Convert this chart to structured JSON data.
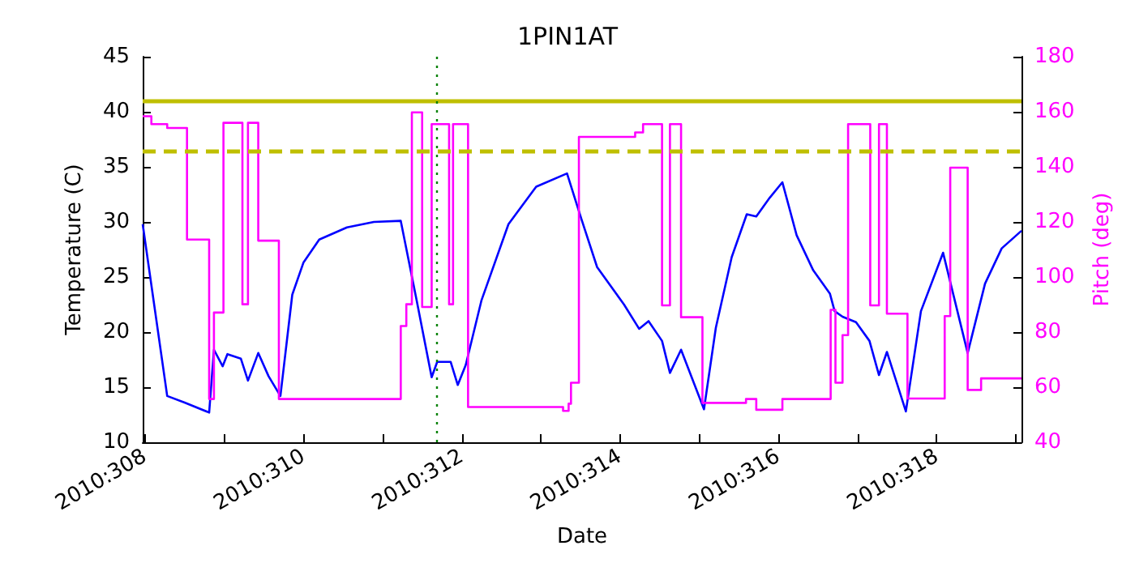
{
  "chart_data": {
    "type": "line",
    "title": "1PIN1AT",
    "xlabel": "Date",
    "ylabel": "Temperature (C)",
    "y2label": "Pitch (deg)",
    "xlim": [
      "2010-11-03T23:17",
      "2010-11-15T01:41"
    ],
    "xticks": [
      {
        "value": "2010-11-04",
        "label": "2010:308"
      },
      {
        "value": "2010-11-05",
        "label": null
      },
      {
        "value": "2010-11-06",
        "label": "2010:310"
      },
      {
        "value": "2010-11-07",
        "label": null
      },
      {
        "value": "2010-11-08",
        "label": "2010:312"
      },
      {
        "value": "2010-11-09",
        "label": null
      },
      {
        "value": "2010-11-10",
        "label": "2010:314"
      },
      {
        "value": "2010-11-11",
        "label": null
      },
      {
        "value": "2010-11-12",
        "label": "2010:316"
      },
      {
        "value": "2010-11-13",
        "label": null
      },
      {
        "value": "2010-11-14",
        "label": "2010:318"
      },
      {
        "value": "2010-11-15",
        "label": null
      }
    ],
    "ylim": [
      10,
      45
    ],
    "yticks": [
      10,
      15,
      20,
      25,
      30,
      35,
      40,
      45
    ],
    "y2lim": [
      40,
      180
    ],
    "y2ticks": [
      40,
      60,
      80,
      100,
      120,
      140,
      160,
      180
    ],
    "grid": false,
    "series": [
      {
        "axis": "y",
        "color": "#0000ff",
        "x": [
          "2010-11-03T23:17",
          "2010-11-04T06:43",
          "2010-11-04T12:00",
          "2010-11-04T19:26",
          "2010-11-04T20:53",
          "2010-11-04T23:31",
          "2010-11-05T00:58",
          "2010-11-05T05:02",
          "2010-11-05T07:12",
          "2010-11-05T10:19",
          "2010-11-05T13:26",
          "2010-11-05T17:02",
          "2010-11-05T20:38",
          "2010-11-06T00:00",
          "2010-11-06T04:48",
          "2010-11-06T13:12",
          "2010-11-06T21:22",
          "2010-11-07T05:31",
          "2010-11-07T10:19",
          "2010-11-07T14:53",
          "2010-11-07T16:34",
          "2010-11-07T20:38",
          "2010-11-07T22:48",
          "2010-11-08T01:12",
          "2010-11-08T06:00",
          "2010-11-08T14:10",
          "2010-11-08T22:34",
          "2010-11-09T07:55",
          "2010-11-09T12:14",
          "2010-11-09T17:02",
          "2010-11-10T01:12",
          "2010-11-10T05:46",
          "2010-11-10T08:38",
          "2010-11-10T12:43",
          "2010-11-10T15:07",
          "2010-11-10T18:29",
          "2010-11-11T01:26",
          "2010-11-11T05:02",
          "2010-11-11T09:50",
          "2010-11-11T14:24",
          "2010-11-11T17:17",
          "2010-11-11T21:22",
          "2010-11-12T01:12",
          "2010-11-12T05:31",
          "2010-11-12T10:34",
          "2010-11-12T15:36",
          "2010-11-12T17:02",
          "2010-11-12T19:26",
          "2010-11-12T23:31",
          "2010-11-13T03:36",
          "2010-11-13T06:29",
          "2010-11-13T08:53",
          "2010-11-13T14:38",
          "2010-11-13T19:12",
          "2010-11-14T01:55",
          "2010-11-14T09:22",
          "2010-11-14T14:38",
          "2010-11-14T19:41",
          "2010-11-15T01:41"
        ],
        "values": [
          29.8,
          14.2,
          13.6,
          12.7,
          18.4,
          16.9,
          18.0,
          17.6,
          15.6,
          18.1,
          16.0,
          14.2,
          23.4,
          26.3,
          28.4,
          29.5,
          30.0,
          30.1,
          22.9,
          15.9,
          17.3,
          17.3,
          15.2,
          17.0,
          22.9,
          29.8,
          33.2,
          34.4,
          30.3,
          25.9,
          22.5,
          20.3,
          21.0,
          19.2,
          16.3,
          18.4,
          13.0,
          20.4,
          26.8,
          30.7,
          30.5,
          32.2,
          33.6,
          28.8,
          25.6,
          23.5,
          21.9,
          21.4,
          20.9,
          19.2,
          16.1,
          18.2,
          12.8,
          21.9,
          27.2,
          18.1,
          24.4,
          27.6,
          29.2
        ]
      },
      {
        "type": "step",
        "axis": "y2",
        "color": "#ff00ff",
        "x": [
          "2010-11-03T23:17",
          "2010-11-04T01:55",
          "2010-11-04T06:43",
          "2010-11-04T12:43",
          "2010-11-04T19:26",
          "2010-11-04T20:53",
          "2010-11-04T23:46",
          "2010-11-05T05:31",
          "2010-11-05T07:12",
          "2010-11-05T10:19",
          "2010-11-05T16:34",
          "2010-11-07T05:31",
          "2010-11-07T07:12",
          "2010-11-07T08:53",
          "2010-11-07T12:00",
          "2010-11-07T14:53",
          "2010-11-07T20:10",
          "2010-11-07T21:22",
          "2010-11-08T01:55",
          "2010-11-09T06:43",
          "2010-11-09T08:24",
          "2010-11-09T09:07",
          "2010-11-09T11:31",
          "2010-11-10T04:34",
          "2010-11-10T06:58",
          "2010-11-10T12:43",
          "2010-11-10T15:07",
          "2010-11-10T18:29",
          "2010-11-11T00:58",
          "2010-11-11T14:10",
          "2010-11-11T17:17",
          "2010-11-12T01:12",
          "2010-11-12T15:50",
          "2010-11-12T17:17",
          "2010-11-12T19:26",
          "2010-11-12T21:07",
          "2010-11-13T03:50",
          "2010-11-13T06:29",
          "2010-11-13T08:53",
          "2010-11-13T15:07",
          "2010-11-14T02:24",
          "2010-11-14T04:05",
          "2010-11-14T09:22",
          "2010-11-14T13:26",
          "2010-11-15T01:41"
        ],
        "values": [
          158.4,
          155.5,
          154.1,
          113.6,
          55.7,
          87.1,
          156.0,
          90.1,
          156.0,
          113.2,
          55.7,
          82.2,
          90.1,
          159.8,
          89.1,
          155.5,
          90.1,
          155.5,
          52.8,
          51.4,
          54.0,
          61.6,
          150.9,
          152.5,
          155.5,
          89.7,
          155.5,
          85.4,
          54.3,
          55.7,
          51.8,
          55.7,
          88.1,
          61.6,
          78.9,
          155.5,
          89.7,
          155.5,
          86.7,
          55.9,
          85.8,
          139.7,
          59.0,
          63.2,
          63.2
        ]
      }
    ],
    "ref_lines": [
      {
        "axis": "y",
        "value": 41,
        "color": "#bfbf00",
        "line_style": "solid"
      },
      {
        "axis": "y",
        "value": 36.4,
        "color": "#bfbf00",
        "line_style": "dashed"
      },
      {
        "axis": "x",
        "value": "2010-11-07T16:34",
        "color": "#008000",
        "line_style": "dotted"
      }
    ]
  }
}
